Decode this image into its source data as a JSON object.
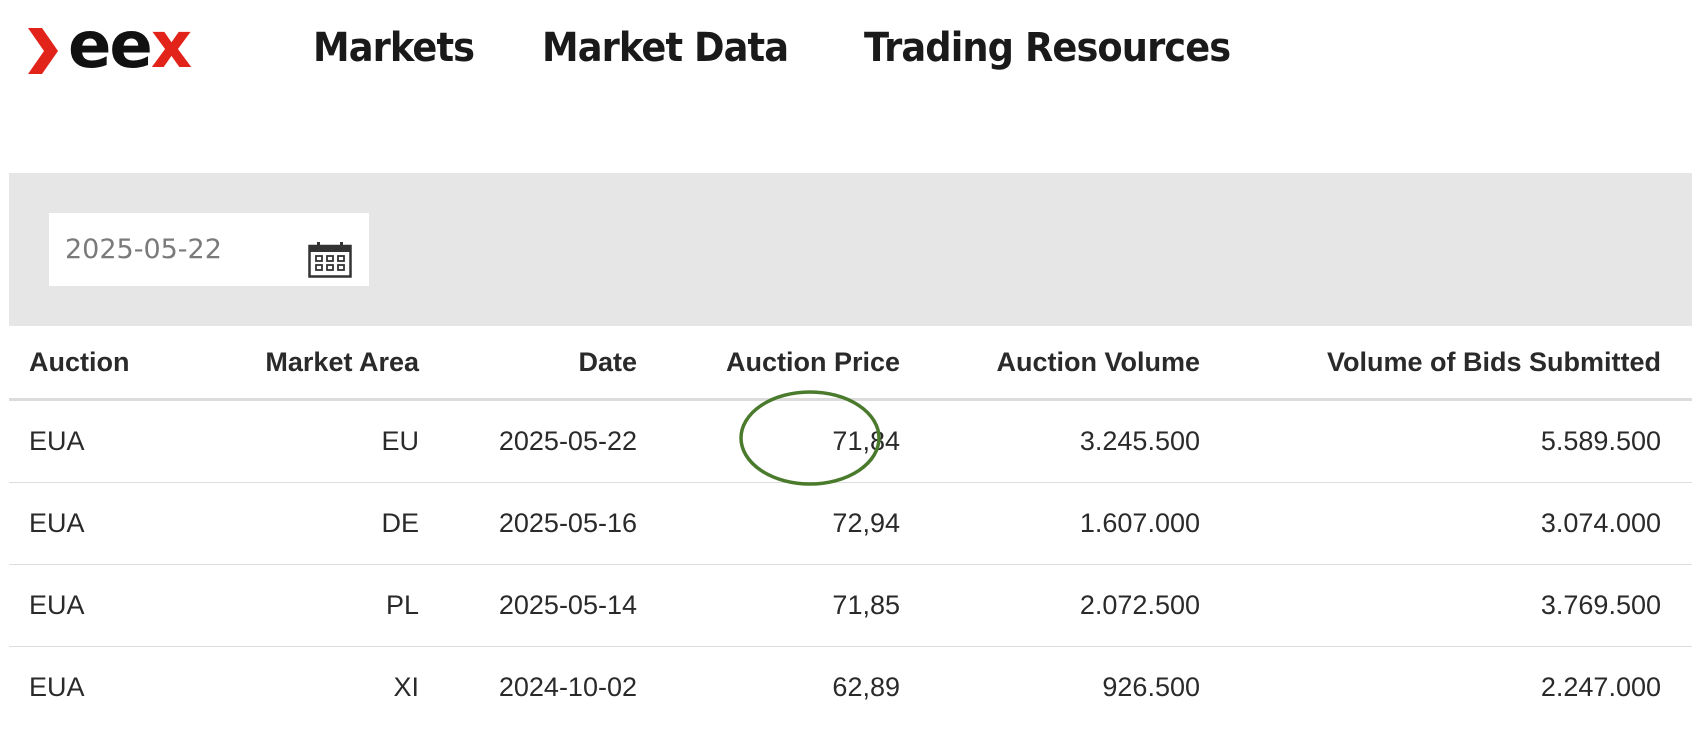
{
  "brand": {
    "logo_text_ee": "ee",
    "logo_text_x": "x",
    "accent_color": "#e2231a"
  },
  "nav": {
    "items": [
      {
        "label": "Markets"
      },
      {
        "label": "Market Data"
      },
      {
        "label": "Trading Resources"
      }
    ]
  },
  "filter": {
    "date_value": "2025-05-22",
    "calendar_icon": "calendar-icon",
    "background": "#e7e6e7"
  },
  "table": {
    "headers": [
      "Auction",
      "Market Area",
      "Date",
      "Auction Price",
      "Auction Volume",
      "Volume of Bids Submitted"
    ],
    "rows": [
      {
        "auction": "EUA",
        "market_area": "EU",
        "date": "2025-05-22",
        "price": "71,84",
        "volume": "3.245.500",
        "bids": "5.589.500",
        "highlighted": true
      },
      {
        "auction": "EUA",
        "market_area": "DE",
        "date": "2025-05-16",
        "price": "72,94",
        "volume": "1.607.000",
        "bids": "3.074.000"
      },
      {
        "auction": "EUA",
        "market_area": "PL",
        "date": "2025-05-14",
        "price": "71,85",
        "volume": "2.072.500",
        "bids": "3.769.500"
      },
      {
        "auction": "EUA",
        "market_area": "XI",
        "date": "2024-10-02",
        "price": "62,89",
        "volume": "926.500",
        "bids": "2.247.000"
      }
    ]
  },
  "annotation": {
    "circle_color": "#4a7a2c"
  }
}
